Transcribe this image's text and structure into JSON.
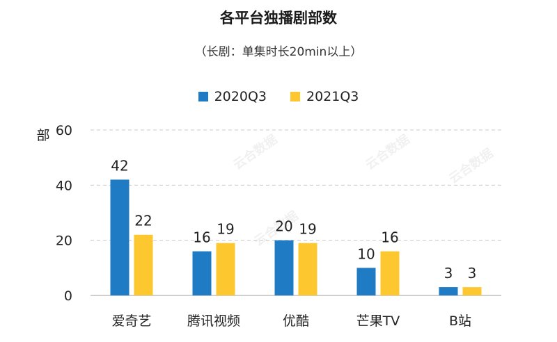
{
  "chart_data": {
    "type": "bar",
    "title": "各平台独播剧部数",
    "subtitle": "（长剧：单集时长20min以上）",
    "ylabel": "部",
    "xlabel": "",
    "ylim": [
      0,
      60
    ],
    "yticks": [
      0,
      20,
      40,
      60
    ],
    "grid": true,
    "legend_position": "top",
    "categories": [
      "爱奇艺",
      "腾讯视频",
      "优酷",
      "芒果TV",
      "B站"
    ],
    "series": [
      {
        "name": "2020Q3",
        "color": "#1f7bc4",
        "values": [
          42,
          16,
          20,
          10,
          3
        ]
      },
      {
        "name": "2021Q3",
        "color": "#fdc82f",
        "values": [
          22,
          19,
          19,
          16,
          3
        ]
      }
    ]
  },
  "watermark": {
    "text": "云合数据"
  }
}
